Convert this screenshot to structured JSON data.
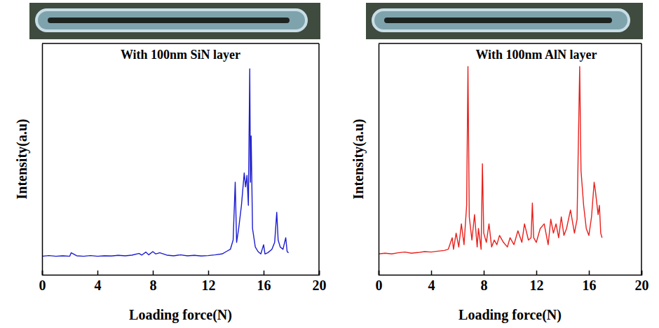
{
  "chart_data": [
    {
      "type": "line",
      "title": "With 100nm SiN layer",
      "x_label": "Loading force(N)",
      "y_label": "Intensity(a.u)",
      "color": "#1c1ccf",
      "xlim": [
        0,
        20
      ],
      "xticks": [
        0,
        4,
        8,
        12,
        16,
        20
      ],
      "ylim": [
        0,
        100
      ],
      "tick_labels": "x",
      "x": [
        0,
        0.5,
        1,
        1.5,
        2,
        2.1,
        2.5,
        3,
        3.5,
        4,
        4.5,
        5,
        5.5,
        6,
        6.5,
        7,
        7.2,
        7.5,
        7.7,
        8,
        8.2,
        8.5,
        9,
        9.5,
        10,
        10.5,
        11,
        11.5,
        12,
        12.5,
        13,
        13.3,
        13.6,
        13.8,
        13.95,
        14.05,
        14.2,
        14.4,
        14.6,
        14.7,
        14.8,
        14.9,
        15.0,
        15.05,
        15.1,
        15.2,
        15.4,
        15.6,
        15.8,
        16.0,
        16.1,
        16.3,
        16.6,
        16.8,
        16.95,
        17.05,
        17.2,
        17.4,
        17.6,
        17.7,
        17.8
      ],
      "values": [
        8,
        8.3,
        8,
        8.2,
        8,
        9.5,
        8.2,
        8,
        8.3,
        8,
        8.2,
        8.1,
        8.4,
        8.2,
        8.5,
        9.2,
        8.5,
        9.8,
        8.6,
        10,
        9,
        9.5,
        8.5,
        8.2,
        8.6,
        8.2,
        8.4,
        8.1,
        8.3,
        8.6,
        9,
        10,
        11,
        15,
        40,
        14,
        20,
        30,
        44,
        38,
        43,
        30,
        89,
        40,
        60,
        20,
        12,
        10,
        9,
        13,
        9,
        9.5,
        11,
        14,
        27,
        15,
        12,
        11,
        16,
        10,
        9.5
      ]
    },
    {
      "type": "line",
      "title": "With 100nm AlN layer",
      "x_label": "Loading force(N)",
      "y_label": "Intensity(a.u)",
      "color": "#e8201c",
      "xlim": [
        0,
        20
      ],
      "xticks": [
        0,
        4,
        8,
        12,
        16,
        20
      ],
      "ylim": [
        0,
        100
      ],
      "tick_labels": "x",
      "x": [
        0,
        0.5,
        1,
        1.5,
        2,
        2.5,
        3,
        3.5,
        4,
        4.5,
        5,
        5.3,
        5.6,
        5.7,
        5.9,
        6.1,
        6.3,
        6.5,
        6.7,
        6.8,
        6.9,
        7.1,
        7.3,
        7.5,
        7.6,
        7.8,
        7.9,
        8.0,
        8.2,
        8.4,
        8.6,
        8.8,
        9.0,
        9.2,
        9.5,
        9.8,
        10.0,
        10.3,
        10.6,
        10.9,
        11.1,
        11.4,
        11.6,
        11.7,
        11.8,
        12.0,
        12.3,
        12.6,
        12.9,
        13.1,
        13.3,
        13.5,
        13.7,
        13.9,
        14.1,
        14.3,
        14.6,
        14.9,
        15.1,
        15.3,
        15.4,
        15.6,
        15.8,
        16.0,
        16.2,
        16.4,
        16.5,
        16.7,
        16.8,
        16.9,
        17.0
      ],
      "values": [
        9,
        9.3,
        9,
        9.5,
        9.8,
        9.3,
        9.6,
        10,
        9.8,
        10.2,
        10.5,
        11,
        16,
        11,
        18,
        12,
        22,
        13,
        30,
        90,
        25,
        15,
        26,
        12,
        20,
        11,
        48,
        18,
        14,
        22,
        12,
        15,
        13,
        17,
        14,
        12,
        16,
        13,
        19,
        14,
        22,
        15,
        16,
        31,
        16,
        14,
        20,
        22,
        13,
        24,
        18,
        22,
        16,
        25,
        17,
        20,
        28,
        18,
        24,
        90,
        45,
        30,
        20,
        17,
        25,
        40,
        36,
        26,
        30,
        18,
        16
      ]
    }
  ]
}
